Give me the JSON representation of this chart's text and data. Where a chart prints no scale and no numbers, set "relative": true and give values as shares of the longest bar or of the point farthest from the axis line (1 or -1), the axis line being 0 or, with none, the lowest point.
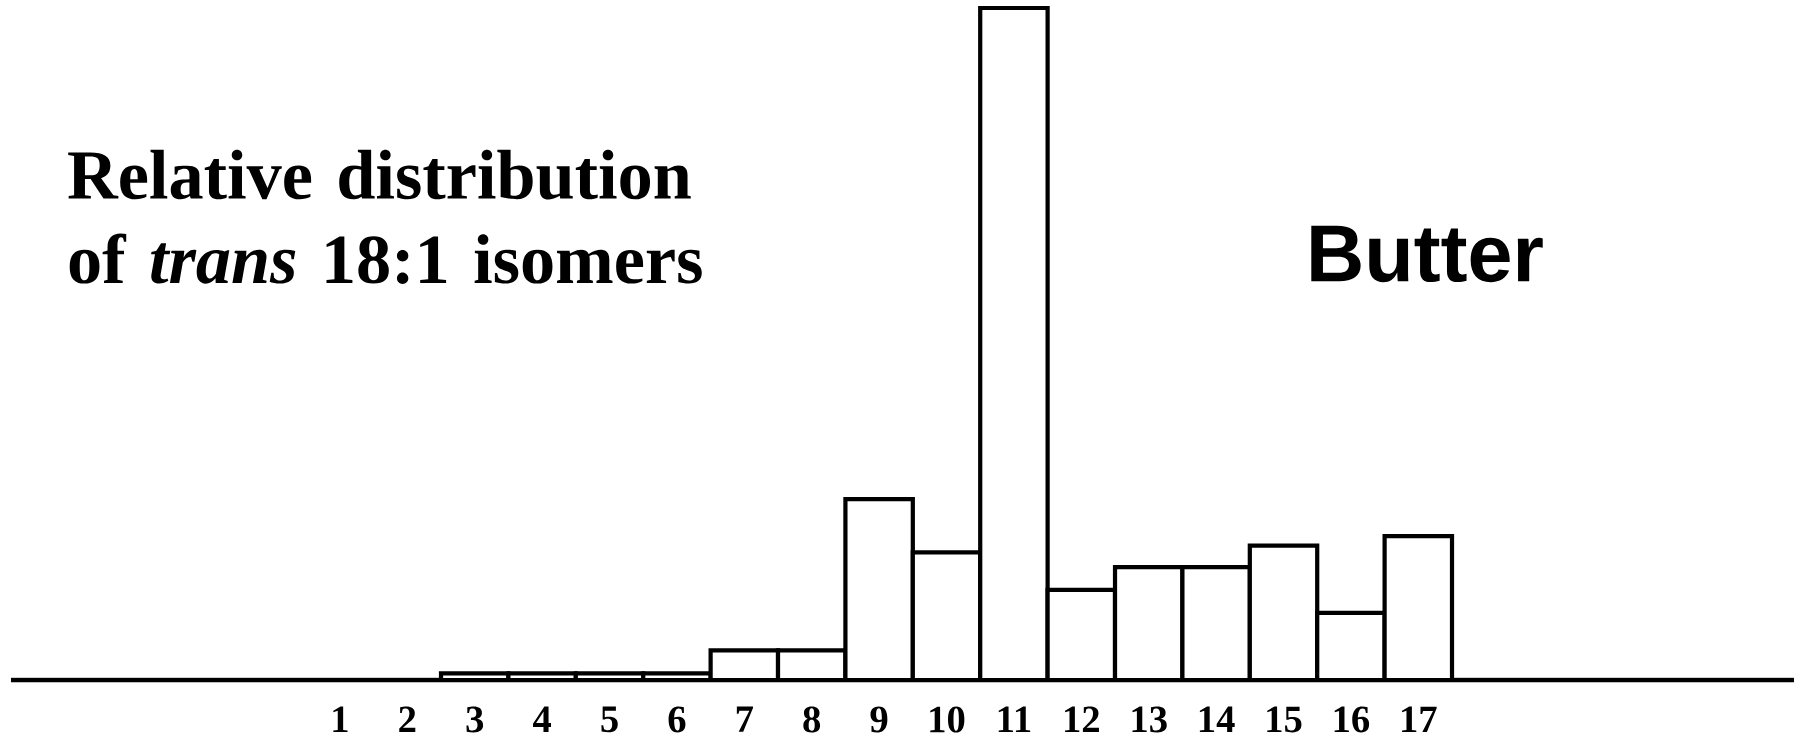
{
  "chart_data": {
    "type": "bar",
    "relative": true,
    "title": "Relative distribution of *trans* 18:1 isomers",
    "annotations": [
      "Butter"
    ],
    "categories": [
      "1",
      "2",
      "3",
      "4",
      "5",
      "6",
      "7",
      "8",
      "9",
      "10",
      "11",
      "12",
      "13",
      "14",
      "15",
      "16",
      "17"
    ],
    "values": [
      null,
      null,
      0.01,
      0.01,
      0.01,
      0.01,
      0.044,
      0.044,
      0.269,
      0.19,
      1,
      0.134,
      0.168,
      0.168,
      0.2,
      0.1,
      0.214
    ],
    "color": "#ffffff"
  }
}
